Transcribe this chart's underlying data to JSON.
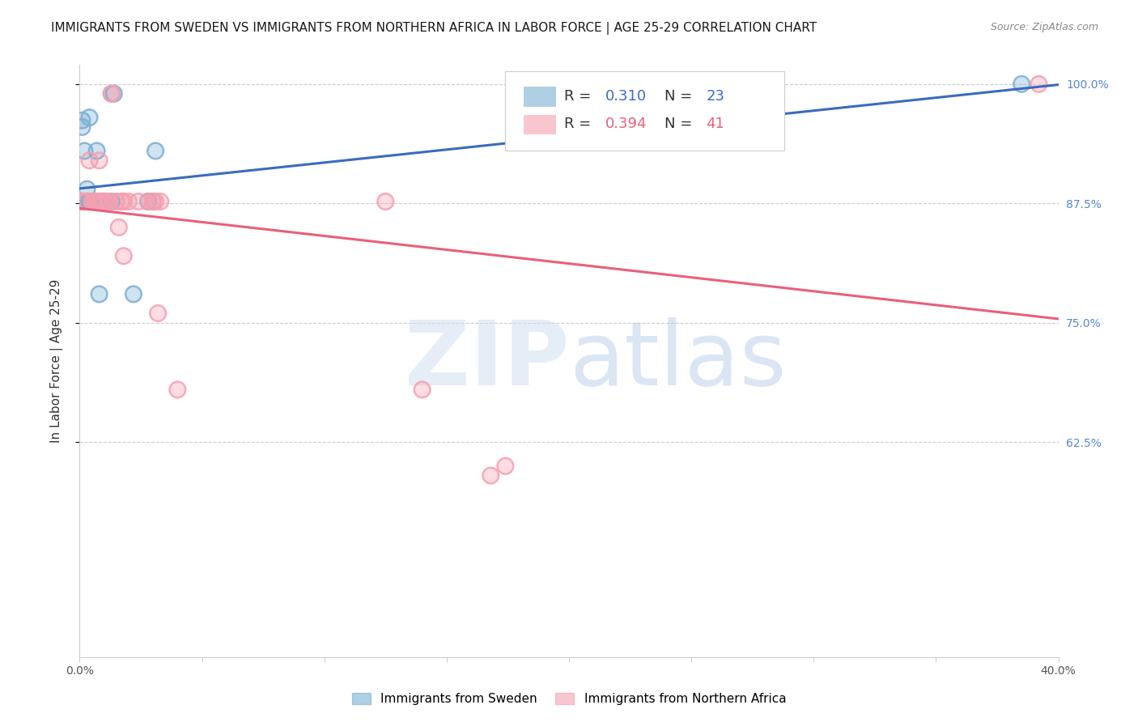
{
  "title": "IMMIGRANTS FROM SWEDEN VS IMMIGRANTS FROM NORTHERN AFRICA IN LABOR FORCE | AGE 25-29 CORRELATION CHART",
  "source": "Source: ZipAtlas.com",
  "ylabel": "In Labor Force | Age 25-29",
  "xlim": [
    0.0,
    0.4
  ],
  "ylim": [
    0.4,
    1.02
  ],
  "yticks": [
    0.625,
    0.75,
    0.875,
    1.0
  ],
  "ytick_labels": [
    "62.5%",
    "75.0%",
    "87.5%",
    "100.0%"
  ],
  "xticks": [
    0.0,
    0.05,
    0.1,
    0.15,
    0.2,
    0.25,
    0.3,
    0.35,
    0.4
  ],
  "xtick_labels": [
    "0.0%",
    "",
    "",
    "",
    "",
    "",
    "",
    "",
    "40.0%"
  ],
  "sweden_R": 0.31,
  "sweden_N": 23,
  "africa_R": 0.394,
  "africa_N": 41,
  "sweden_color": "#7BAFD4",
  "africa_color": "#F4A0B0",
  "sweden_line_color": "#3a6bbf",
  "africa_line_color": "#e8607a",
  "right_tick_color": "#5588CC",
  "sweden_x": [
    0.001,
    0.001,
    0.001,
    0.001,
    0.001,
    0.002,
    0.002,
    0.003,
    0.003,
    0.003,
    0.004,
    0.004,
    0.005,
    0.007,
    0.008,
    0.009,
    0.01,
    0.013,
    0.014,
    0.022,
    0.028,
    0.031,
    0.385
  ],
  "sweden_y": [
    0.877,
    0.877,
    0.877,
    0.962,
    0.955,
    0.877,
    0.93,
    0.89,
    0.877,
    0.877,
    0.877,
    0.965,
    0.877,
    0.93,
    0.78,
    0.877,
    0.877,
    0.877,
    0.99,
    0.78,
    0.877,
    0.93,
    1.0
  ],
  "africa_x": [
    0.001,
    0.001,
    0.001,
    0.002,
    0.003,
    0.003,
    0.004,
    0.005,
    0.006,
    0.006,
    0.007,
    0.007,
    0.008,
    0.008,
    0.009,
    0.009,
    0.01,
    0.01,
    0.011,
    0.012,
    0.013,
    0.013,
    0.015,
    0.016,
    0.017,
    0.018,
    0.018,
    0.02,
    0.024,
    0.028,
    0.03,
    0.03,
    0.031,
    0.032,
    0.033,
    0.04,
    0.125,
    0.14,
    0.168,
    0.174,
    0.392
  ],
  "africa_y": [
    0.877,
    0.877,
    0.877,
    0.877,
    0.877,
    0.877,
    0.92,
    0.877,
    0.877,
    0.877,
    0.877,
    0.877,
    0.877,
    0.92,
    0.877,
    0.877,
    0.877,
    0.877,
    0.877,
    0.877,
    0.99,
    0.99,
    0.877,
    0.85,
    0.877,
    0.82,
    0.877,
    0.877,
    0.877,
    0.877,
    0.877,
    0.877,
    0.877,
    0.76,
    0.877,
    0.68,
    0.877,
    0.68,
    0.59,
    0.6,
    1.0
  ],
  "background_color": "#FFFFFF",
  "grid_color": "#CCCCCC",
  "axis_color": "#CCCCCC"
}
